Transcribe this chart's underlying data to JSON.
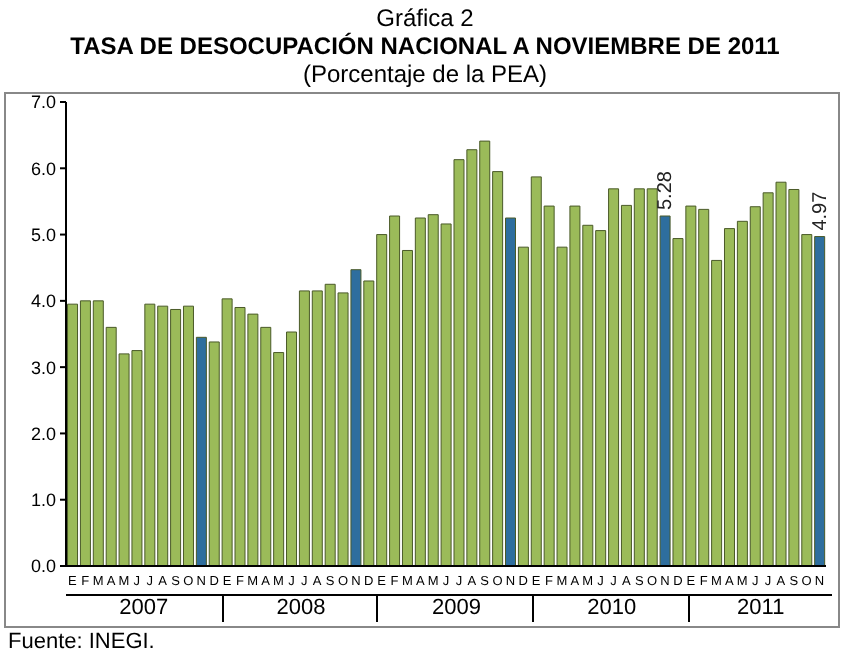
{
  "chart_data": {
    "type": "bar",
    "title": "Gráfica 2",
    "subtitle": "TASA DE DESOCUPACIÓN NACIONAL A NOVIEMBRE DE 2011",
    "annotations": [
      "(Porcentaje de la PEA)",
      "2007",
      "2008",
      "2009",
      "2010",
      "2011",
      "Fuente: INEGI."
    ],
    "categories": [
      "E",
      "F",
      "M",
      "A",
      "M",
      "J",
      "J",
      "A",
      "S",
      "O",
      "N",
      "D",
      "E",
      "F",
      "M",
      "A",
      "M",
      "J",
      "J",
      "A",
      "S",
      "O",
      "N",
      "D",
      "E",
      "F",
      "M",
      "A",
      "M",
      "J",
      "J",
      "A",
      "S",
      "O",
      "N",
      "D",
      "E",
      "F",
      "M",
      "A",
      "M",
      "J",
      "J",
      "A",
      "S",
      "O",
      "N",
      "D",
      "E",
      "F",
      "M",
      "A",
      "M",
      "J",
      "J",
      "A",
      "S",
      "O",
      "N"
    ],
    "values": [
      3.95,
      4.0,
      4.0,
      3.6,
      3.2,
      3.25,
      3.95,
      3.92,
      3.87,
      3.92,
      3.45,
      3.38,
      4.03,
      3.9,
      3.8,
      3.6,
      3.22,
      3.53,
      4.15,
      4.15,
      4.25,
      4.12,
      4.47,
      4.3,
      5.0,
      5.28,
      4.76,
      5.25,
      5.3,
      5.16,
      6.13,
      6.28,
      6.41,
      5.95,
      5.25,
      4.81,
      5.87,
      5.43,
      4.81,
      5.43,
      5.14,
      5.06,
      5.69,
      5.44,
      5.69,
      5.69,
      5.28,
      4.94,
      5.43,
      5.38,
      4.61,
      5.09,
      5.2,
      5.42,
      5.63,
      5.79,
      5.68,
      5.0,
      4.97
    ],
    "value_labels": [
      null,
      null,
      null,
      null,
      null,
      null,
      null,
      null,
      null,
      null,
      null,
      null,
      null,
      null,
      null,
      null,
      null,
      null,
      null,
      null,
      null,
      null,
      null,
      null,
      null,
      null,
      null,
      null,
      null,
      null,
      null,
      null,
      null,
      null,
      null,
      null,
      null,
      null,
      null,
      null,
      null,
      null,
      null,
      null,
      null,
      null,
      "5.28",
      null,
      null,
      null,
      null,
      null,
      null,
      null,
      null,
      null,
      null,
      null,
      "4.97"
    ],
    "colors": [
      "#9bbb59",
      "#9bbb59",
      "#9bbb59",
      "#9bbb59",
      "#9bbb59",
      "#9bbb59",
      "#9bbb59",
      "#9bbb59",
      "#9bbb59",
      "#9bbb59",
      "#2e6e9e",
      "#9bbb59",
      "#9bbb59",
      "#9bbb59",
      "#9bbb59",
      "#9bbb59",
      "#9bbb59",
      "#9bbb59",
      "#9bbb59",
      "#9bbb59",
      "#9bbb59",
      "#9bbb59",
      "#2e6e9e",
      "#9bbb59",
      "#9bbb59",
      "#9bbb59",
      "#9bbb59",
      "#9bbb59",
      "#9bbb59",
      "#9bbb59",
      "#9bbb59",
      "#9bbb59",
      "#9bbb59",
      "#9bbb59",
      "#2e6e9e",
      "#9bbb59",
      "#9bbb59",
      "#9bbb59",
      "#9bbb59",
      "#9bbb59",
      "#9bbb59",
      "#9bbb59",
      "#9bbb59",
      "#9bbb59",
      "#9bbb59",
      "#9bbb59",
      "#2e6e9e",
      "#9bbb59",
      "#9bbb59",
      "#9bbb59",
      "#9bbb59",
      "#9bbb59",
      "#9bbb59",
      "#9bbb59",
      "#9bbb59",
      "#9bbb59",
      "#9bbb59",
      "#9bbb59",
      "#2e6e9e"
    ],
    "ylim": [
      0,
      7
    ],
    "yticks": [
      {
        "value": 0,
        "label": "0.0"
      },
      {
        "value": 1,
        "label": "1.0"
      },
      {
        "value": 2,
        "label": "2.0"
      },
      {
        "value": 3,
        "label": "3.0"
      },
      {
        "value": 4,
        "label": "4.0"
      },
      {
        "value": 5,
        "label": "5.0"
      },
      {
        "value": 6,
        "label": "6.0"
      },
      {
        "value": 7,
        "label": "7.0"
      }
    ],
    "grid": false
  }
}
